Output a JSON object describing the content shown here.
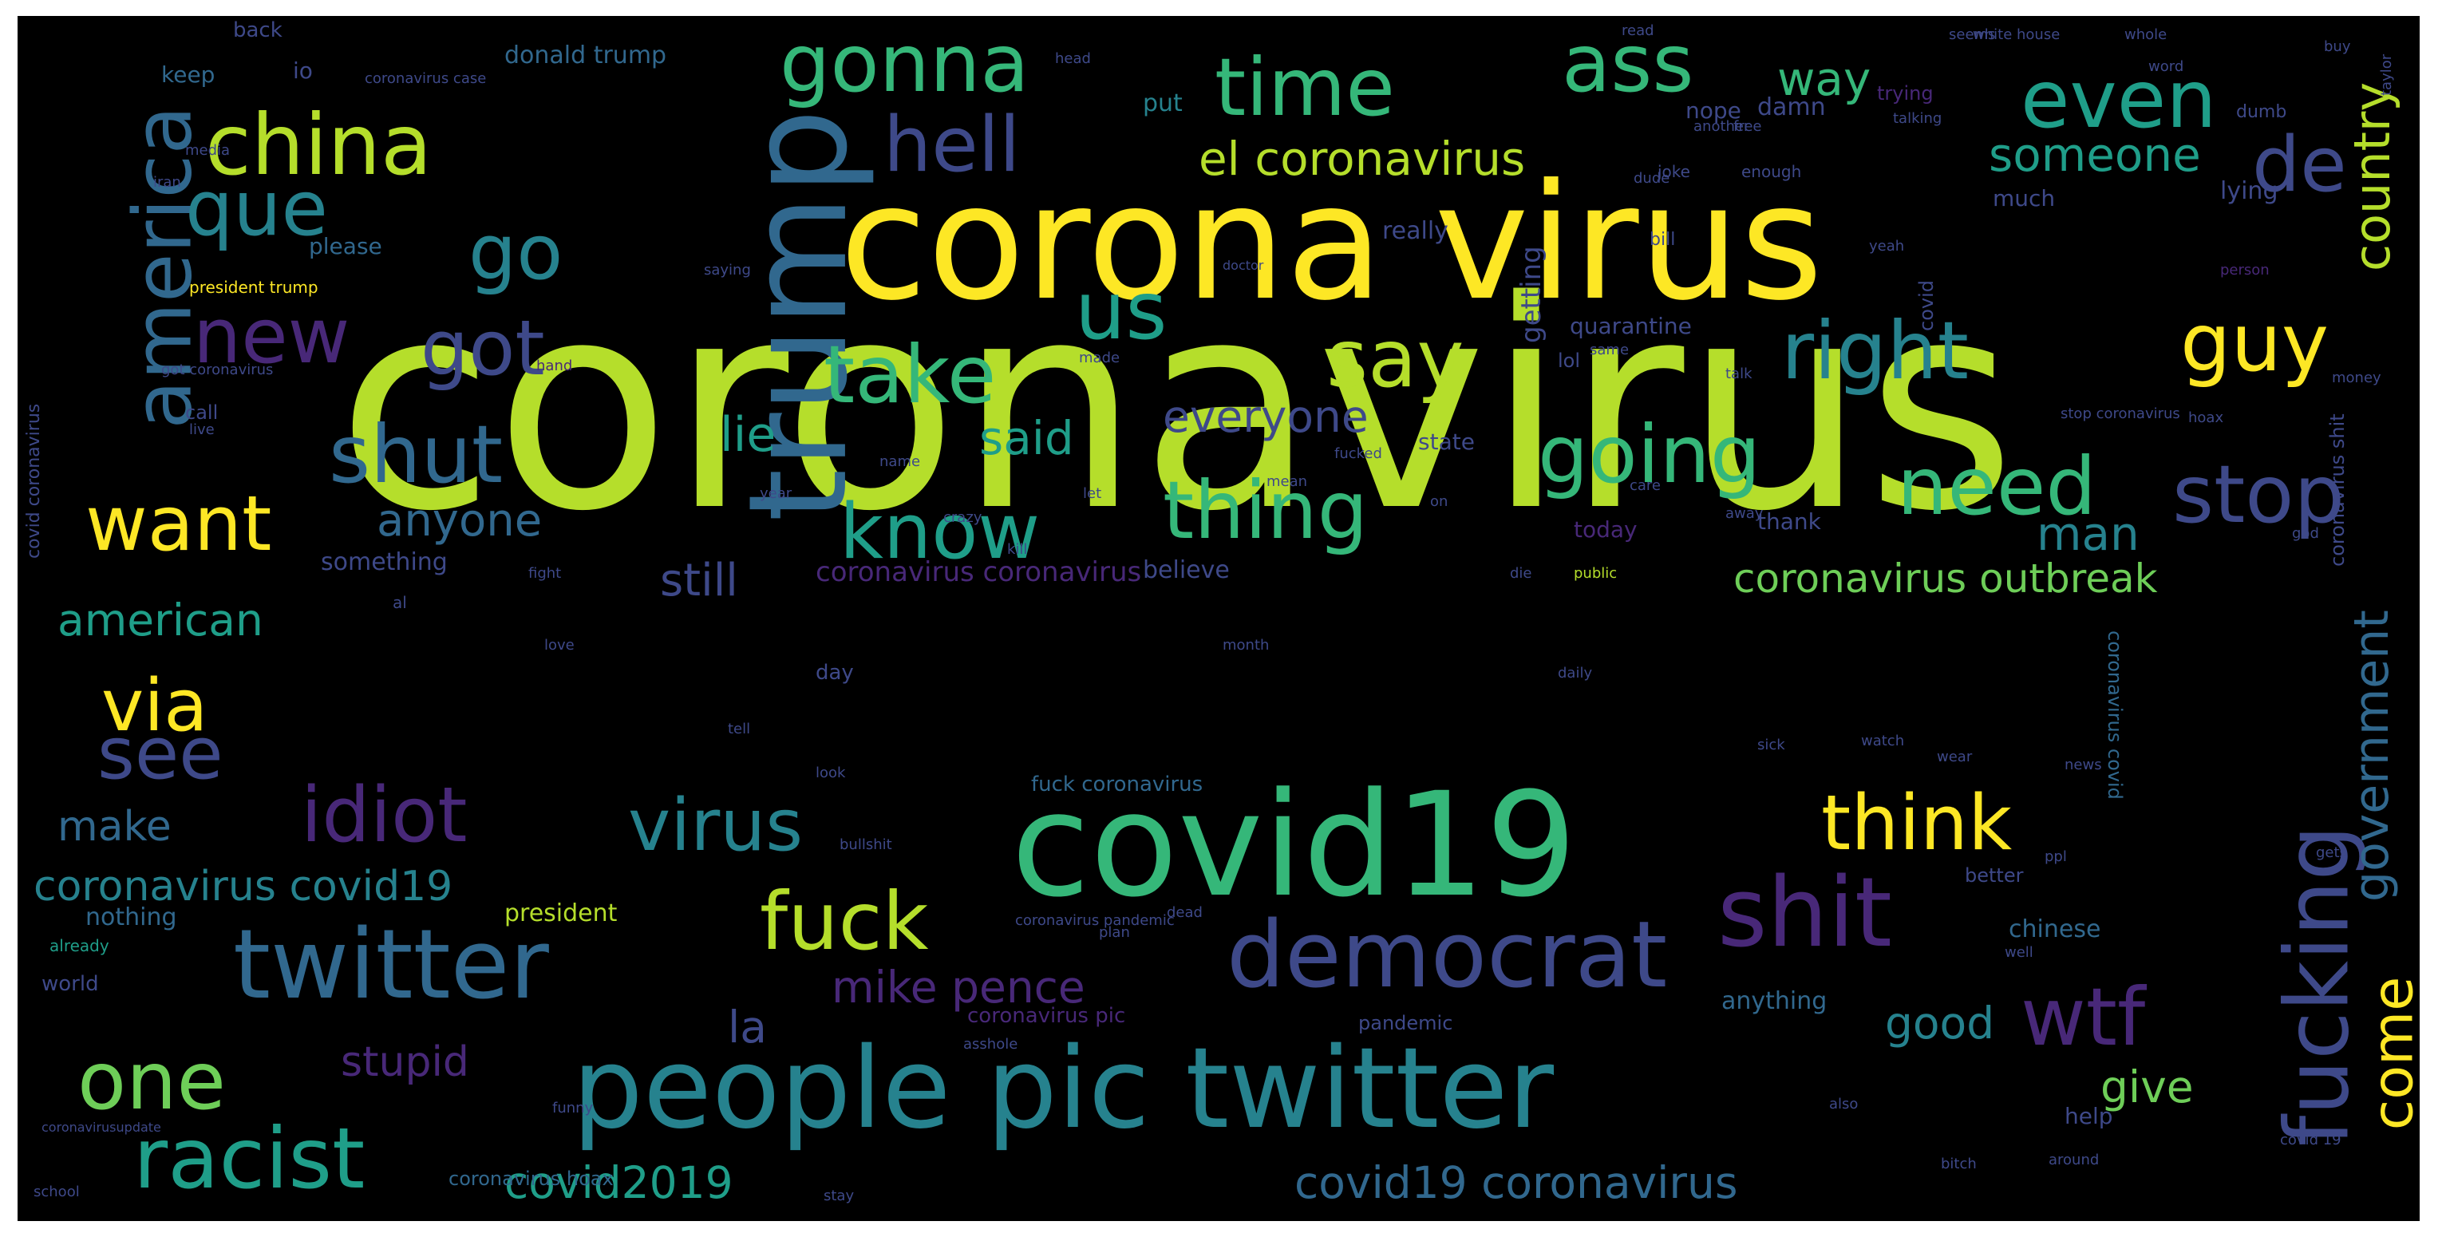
{
  "palette": {
    "yellow": "#fde725",
    "lime": "#b5de2b",
    "green": "#6ece58",
    "teal": "#35b779",
    "cyan": "#1f9e89",
    "steel": "#26828e",
    "blue": "#31688e",
    "indigo": "#3e4989",
    "purple": "#482878",
    "dark": "#440154",
    "background": "#000000"
  },
  "words": [
    {
      "text": "coronavirus",
      "color": "#b5de2b"
    },
    {
      "text": "corona virus",
      "color": "#fde725"
    },
    {
      "text": "covid19",
      "color": "#35b779"
    },
    {
      "text": "people pic twitter",
      "color": "#26828e"
    },
    {
      "text": "trump",
      "color": "#31688e"
    },
    {
      "text": "twitter",
      "color": "#31688e"
    },
    {
      "text": "democrat",
      "color": "#3e4989"
    },
    {
      "text": "racist",
      "color": "#1f9e89"
    },
    {
      "text": "shit",
      "color": "#482878"
    },
    {
      "text": "fucking",
      "color": "#3e4989"
    },
    {
      "text": "china",
      "color": "#b5de2b"
    },
    {
      "text": "america",
      "color": "#31688e"
    },
    {
      "text": "gonna",
      "color": "#35b779"
    },
    {
      "text": "time",
      "color": "#35b779"
    },
    {
      "text": "ass",
      "color": "#35b779"
    },
    {
      "text": "even",
      "color": "#1f9e89"
    },
    {
      "text": "hell",
      "color": "#3e4989"
    },
    {
      "text": "que",
      "color": "#26828e"
    },
    {
      "text": "go",
      "color": "#26828e"
    },
    {
      "text": "new",
      "color": "#482878"
    },
    {
      "text": "got",
      "color": "#3e4989"
    },
    {
      "text": "us",
      "color": "#1f9e89"
    },
    {
      "text": "take",
      "color": "#35b779"
    },
    {
      "text": "say",
      "color": "#b5de2b"
    },
    {
      "text": "right",
      "color": "#26828e"
    },
    {
      "text": "guy",
      "color": "#fde725"
    },
    {
      "text": "de",
      "color": "#3e4989"
    },
    {
      "text": "shut",
      "color": "#31688e"
    },
    {
      "text": "going",
      "color": "#35b779"
    },
    {
      "text": "need",
      "color": "#35b779"
    },
    {
      "text": "stop",
      "color": "#3e4989"
    },
    {
      "text": "want",
      "color": "#fde725"
    },
    {
      "text": "know",
      "color": "#1f9e89"
    },
    {
      "text": "thing",
      "color": "#35b779"
    },
    {
      "text": "via",
      "color": "#fde725"
    },
    {
      "text": "see",
      "color": "#3e4989"
    },
    {
      "text": "idiot",
      "color": "#482878"
    },
    {
      "text": "virus",
      "color": "#26828e"
    },
    {
      "text": "think",
      "color": "#fde725"
    },
    {
      "text": "fuck",
      "color": "#b5de2b"
    },
    {
      "text": "wtf",
      "color": "#482878"
    },
    {
      "text": "one",
      "color": "#6ece58"
    },
    {
      "text": "come",
      "color": "#fde725"
    },
    {
      "text": "country",
      "color": "#b5de2b"
    },
    {
      "text": "government",
      "color": "#31688e"
    },
    {
      "text": "el coronavirus",
      "color": "#b5de2b"
    },
    {
      "text": "someone",
      "color": "#1f9e89"
    },
    {
      "text": "way",
      "color": "#35b779"
    },
    {
      "text": "lie",
      "color": "#1f9e89"
    },
    {
      "text": "said",
      "color": "#1f9e89"
    },
    {
      "text": "everyone",
      "color": "#3e4989"
    },
    {
      "text": "anyone",
      "color": "#31688e"
    },
    {
      "text": "man",
      "color": "#26828e"
    },
    {
      "text": "still",
      "color": "#3e4989"
    },
    {
      "text": "coronavirus outbreak",
      "color": "#6ece58"
    },
    {
      "text": "american",
      "color": "#1f9e89"
    },
    {
      "text": "make",
      "color": "#31688e"
    },
    {
      "text": "coronavirus covid19",
      "color": "#26828e"
    },
    {
      "text": "mike pence",
      "color": "#482878"
    },
    {
      "text": "la",
      "color": "#3e4989"
    },
    {
      "text": "stupid",
      "color": "#482878"
    },
    {
      "text": "good",
      "color": "#26828e"
    },
    {
      "text": "give",
      "color": "#6ece58"
    },
    {
      "text": "covid2019",
      "color": "#1f9e89"
    },
    {
      "text": "covid19 coronavirus",
      "color": "#31688e"
    },
    {
      "text": "chinese",
      "color": "#31688e"
    },
    {
      "text": "nothing",
      "color": "#31688e"
    },
    {
      "text": "president",
      "color": "#b5de2b"
    },
    {
      "text": "coronavirus coronavirus",
      "color": "#482878"
    },
    {
      "text": "believe",
      "color": "#3e4989"
    },
    {
      "text": "something",
      "color": "#3e4989"
    },
    {
      "text": "quarantine",
      "color": "#3e4989"
    },
    {
      "text": "getting",
      "color": "#3e4989"
    },
    {
      "text": "donald trump",
      "color": "#31688e"
    },
    {
      "text": "back",
      "color": "#3e4989"
    },
    {
      "text": "keep",
      "color": "#31688e"
    },
    {
      "text": "io",
      "color": "#3e4989"
    },
    {
      "text": "put",
      "color": "#26828e"
    },
    {
      "text": "nope",
      "color": "#3e4989"
    },
    {
      "text": "damn",
      "color": "#3e4989"
    },
    {
      "text": "much",
      "color": "#3e4989"
    },
    {
      "text": "really",
      "color": "#3e4989"
    },
    {
      "text": "please",
      "color": "#31688e"
    },
    {
      "text": "president trump",
      "color": "#fde725"
    },
    {
      "text": "covid coronavirus",
      "color": "#3e4989"
    },
    {
      "text": "call",
      "color": "#3e4989"
    },
    {
      "text": "lying",
      "color": "#3e4989"
    },
    {
      "text": "state",
      "color": "#3e4989"
    },
    {
      "text": "today",
      "color": "#482878"
    },
    {
      "text": "thank",
      "color": "#3e4989"
    },
    {
      "text": "day",
      "color": "#3e4989"
    },
    {
      "text": "fuck coronavirus",
      "color": "#31688e"
    },
    {
      "text": "coronavirus hoax",
      "color": "#31688e"
    },
    {
      "text": "pandemic",
      "color": "#3e4989"
    },
    {
      "text": "anything",
      "color": "#31688e"
    },
    {
      "text": "help",
      "color": "#3e4989"
    },
    {
      "text": "world",
      "color": "#3e4989"
    },
    {
      "text": "coronavirus pic",
      "color": "#482878"
    },
    {
      "text": "coronavirus covid",
      "color": "#31688e"
    },
    {
      "text": "coronavirus shit",
      "color": "#3e4989"
    },
    {
      "text": "better",
      "color": "#3e4989"
    },
    {
      "text": "bill",
      "color": "#3e4989"
    },
    {
      "text": "lol",
      "color": "#3e4989"
    },
    {
      "text": "covid",
      "color": "#3e4989"
    },
    {
      "text": "enough",
      "color": "#3e4989"
    },
    {
      "text": "joke",
      "color": "#3e4989"
    },
    {
      "text": "trying",
      "color": "#482878"
    },
    {
      "text": "white house",
      "color": "#3e4989"
    },
    {
      "text": "whole",
      "color": "#3e4989"
    },
    {
      "text": "dumb",
      "color": "#3e4989"
    },
    {
      "text": "already",
      "color": "#1f9e89"
    },
    {
      "text": "al",
      "color": "#3e4989"
    },
    {
      "text": "fight",
      "color": "#3e4989"
    },
    {
      "text": "made",
      "color": "#3e4989"
    },
    {
      "text": "media",
      "color": "#3e4989"
    },
    {
      "text": "free",
      "color": "#3e4989"
    },
    {
      "text": "yeah",
      "color": "#3e4989"
    },
    {
      "text": "talking",
      "color": "#3e4989"
    },
    {
      "text": "public",
      "color": "#b5de2b"
    },
    {
      "text": "coronavirus pandemic",
      "color": "#3e4989"
    },
    {
      "text": "school",
      "color": "#3e4989"
    },
    {
      "text": "coronavirusupdate",
      "color": "#3e4989"
    },
    {
      "text": "asshole",
      "color": "#3e4989"
    },
    {
      "text": "funny",
      "color": "#3e4989"
    },
    {
      "text": "plan",
      "color": "#3e4989"
    },
    {
      "text": "ppl",
      "color": "#3e4989"
    },
    {
      "text": "well",
      "color": "#3e4989"
    },
    {
      "text": "gets",
      "color": "#3e4989"
    },
    {
      "text": "year",
      "color": "#3e4989"
    },
    {
      "text": "crazy",
      "color": "#3e4989"
    },
    {
      "text": "let",
      "color": "#3e4989"
    },
    {
      "text": "stop coronavirus",
      "color": "#3e4989"
    },
    {
      "text": "around",
      "color": "#3e4989"
    },
    {
      "text": "bitch",
      "color": "#3e4989"
    },
    {
      "text": "live",
      "color": "#3e4989"
    },
    {
      "text": "fucked",
      "color": "#3e4989"
    },
    {
      "text": "away",
      "color": "#3e4989"
    },
    {
      "text": "hoax",
      "color": "#3e4989"
    },
    {
      "text": "money",
      "color": "#3e4989"
    },
    {
      "text": "doctor",
      "color": "#3e4989"
    },
    {
      "text": "saying",
      "color": "#3e4989"
    },
    {
      "text": "got coronavirus",
      "color": "#3e4989"
    },
    {
      "text": "coronavirus case",
      "color": "#3e4989"
    },
    {
      "text": "another",
      "color": "#3e4989"
    },
    {
      "text": "seems",
      "color": "#3e4989"
    },
    {
      "text": "dude",
      "color": "#3e4989"
    },
    {
      "text": "head",
      "color": "#3e4989"
    },
    {
      "text": "read",
      "color": "#3e4989"
    },
    {
      "text": "buy",
      "color": "#3e4989"
    },
    {
      "text": "word",
      "color": "#3e4989"
    },
    {
      "text": "iran",
      "color": "#3e4989"
    },
    {
      "text": "person",
      "color": "#482878"
    },
    {
      "text": "taylor",
      "color": "#3e4989"
    },
    {
      "text": "talk",
      "color": "#3e4989"
    },
    {
      "text": "same",
      "color": "#3e4989"
    },
    {
      "text": "hand",
      "color": "#482878"
    },
    {
      "text": "watch",
      "color": "#3e4989"
    },
    {
      "text": "daily",
      "color": "#3e4989"
    },
    {
      "text": "tell",
      "color": "#3e4989"
    },
    {
      "text": "wear",
      "color": "#3e4989"
    },
    {
      "text": "bullshit",
      "color": "#3e4989"
    },
    {
      "text": "god",
      "color": "#3e4989"
    },
    {
      "text": "on",
      "color": "#3e4989"
    },
    {
      "text": "name",
      "color": "#3e4989"
    },
    {
      "text": "mean",
      "color": "#3e4989"
    },
    {
      "text": "care",
      "color": "#3e4989"
    },
    {
      "text": "kill",
      "color": "#3e4989"
    },
    {
      "text": "die",
      "color": "#3e4989"
    },
    {
      "text": "month",
      "color": "#3e4989"
    },
    {
      "text": "look",
      "color": "#3e4989"
    },
    {
      "text": "love",
      "color": "#3e4989"
    },
    {
      "text": "sick",
      "color": "#3e4989"
    },
    {
      "text": "news",
      "color": "#3e4989"
    },
    {
      "text": "dead",
      "color": "#3e4989"
    },
    {
      "text": "covid 19",
      "color": "#3e4989"
    },
    {
      "text": "also",
      "color": "#3e4989"
    },
    {
      "text": "stay",
      "color": "#3e4989"
    }
  ]
}
